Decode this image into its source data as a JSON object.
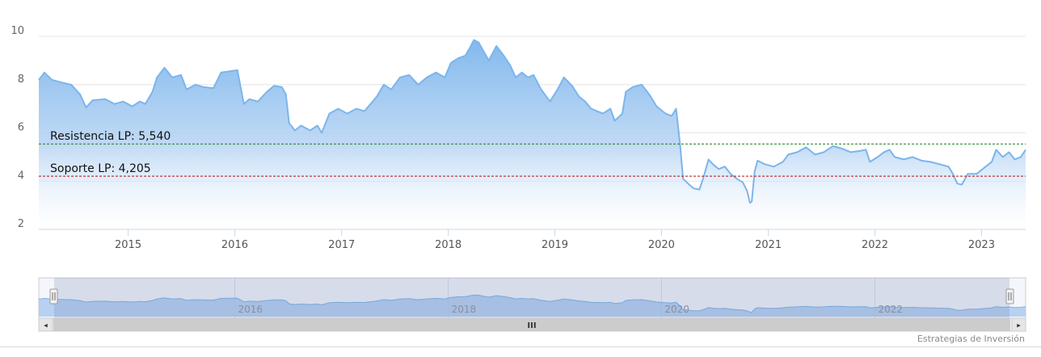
{
  "chart_data": {
    "type": "area",
    "title": "",
    "xlabel": "",
    "ylabel": "",
    "x_range": [
      "2014-03",
      "2023-06"
    ],
    "ylim": [
      2,
      10
    ],
    "y_ticks": [
      2,
      4,
      6,
      8,
      10
    ],
    "x_ticks": [
      "2015",
      "2016",
      "2017",
      "2018",
      "2019",
      "2020",
      "2021",
      "2022",
      "2023"
    ],
    "grid": true,
    "series": [
      {
        "color": "#7cb5ec",
        "points": [
          [
            "2014-03-01",
            8.2
          ],
          [
            "2014-03-20",
            8.5
          ],
          [
            "2014-04-15",
            8.2
          ],
          [
            "2014-05-15",
            8.1
          ],
          [
            "2014-06-20",
            8.0
          ],
          [
            "2014-07-20",
            7.6
          ],
          [
            "2014-08-10",
            7.05
          ],
          [
            "2014-09-01",
            7.35
          ],
          [
            "2014-10-15",
            7.4
          ],
          [
            "2014-11-15",
            7.2
          ],
          [
            "2014-12-15",
            7.3
          ],
          [
            "2015-01-15",
            7.1
          ],
          [
            "2015-02-10",
            7.3
          ],
          [
            "2015-03-01",
            7.2
          ],
          [
            "2015-03-25",
            7.7
          ],
          [
            "2015-04-10",
            8.3
          ],
          [
            "2015-05-05",
            8.7
          ],
          [
            "2015-06-01",
            8.3
          ],
          [
            "2015-07-01",
            8.4
          ],
          [
            "2015-07-20",
            7.8
          ],
          [
            "2015-08-20",
            8.0
          ],
          [
            "2015-09-15",
            7.9
          ],
          [
            "2015-10-20",
            7.85
          ],
          [
            "2015-11-15",
            8.5
          ],
          [
            "2015-12-15",
            8.55
          ],
          [
            "2016-01-10",
            8.6
          ],
          [
            "2016-02-01",
            7.2
          ],
          [
            "2016-02-20",
            7.4
          ],
          [
            "2016-03-20",
            7.3
          ],
          [
            "2016-04-20",
            7.7
          ],
          [
            "2016-05-15",
            7.95
          ],
          [
            "2016-06-10",
            7.9
          ],
          [
            "2016-06-24",
            7.6
          ],
          [
            "2016-07-05",
            6.4
          ],
          [
            "2016-07-25",
            6.1
          ],
          [
            "2016-08-15",
            6.3
          ],
          [
            "2016-09-15",
            6.1
          ],
          [
            "2016-10-10",
            6.3
          ],
          [
            "2016-10-25",
            6.0
          ],
          [
            "2016-11-20",
            6.8
          ],
          [
            "2016-12-20",
            7.0
          ],
          [
            "2017-01-20",
            6.8
          ],
          [
            "2017-02-20",
            7.0
          ],
          [
            "2017-03-20",
            6.9
          ],
          [
            "2017-04-10",
            7.2
          ],
          [
            "2017-05-01",
            7.5
          ],
          [
            "2017-05-25",
            8.0
          ],
          [
            "2017-06-20",
            7.8
          ],
          [
            "2017-07-20",
            8.3
          ],
          [
            "2017-08-20",
            8.4
          ],
          [
            "2017-09-20",
            8.0
          ],
          [
            "2017-10-20",
            8.3
          ],
          [
            "2017-11-20",
            8.5
          ],
          [
            "2017-12-20",
            8.3
          ],
          [
            "2018-01-10",
            8.9
          ],
          [
            "2018-02-05",
            9.1
          ],
          [
            "2018-02-28",
            9.2
          ],
          [
            "2018-03-15",
            9.5
          ],
          [
            "2018-03-30",
            9.85
          ],
          [
            "2018-04-15",
            9.75
          ],
          [
            "2018-05-01",
            9.4
          ],
          [
            "2018-05-20",
            9.0
          ],
          [
            "2018-06-15",
            9.6
          ],
          [
            "2018-07-10",
            9.2
          ],
          [
            "2018-08-01",
            8.8
          ],
          [
            "2018-08-20",
            8.3
          ],
          [
            "2018-09-10",
            8.5
          ],
          [
            "2018-10-01",
            8.3
          ],
          [
            "2018-10-20",
            8.4
          ],
          [
            "2018-11-15",
            7.8
          ],
          [
            "2018-12-15",
            7.3
          ],
          [
            "2019-01-10",
            7.8
          ],
          [
            "2019-02-01",
            8.3
          ],
          [
            "2019-03-01",
            7.95
          ],
          [
            "2019-03-25",
            7.5
          ],
          [
            "2019-04-15",
            7.3
          ],
          [
            "2019-05-05",
            7.0
          ],
          [
            "2019-05-25",
            6.9
          ],
          [
            "2019-06-15",
            6.8
          ],
          [
            "2019-07-10",
            7.0
          ],
          [
            "2019-07-25",
            6.5
          ],
          [
            "2019-08-20",
            6.8
          ],
          [
            "2019-09-01",
            7.7
          ],
          [
            "2019-09-25",
            7.9
          ],
          [
            "2019-10-25",
            8.0
          ],
          [
            "2019-11-20",
            7.6
          ],
          [
            "2019-12-15",
            7.1
          ],
          [
            "2020-01-15",
            6.8
          ],
          [
            "2020-02-05",
            6.7
          ],
          [
            "2020-02-20",
            7.0
          ],
          [
            "2020-03-05",
            5.5
          ],
          [
            "2020-03-15",
            4.1
          ],
          [
            "2020-04-01",
            3.9
          ],
          [
            "2020-04-20",
            3.7
          ],
          [
            "2020-05-10",
            3.65
          ],
          [
            "2020-05-25",
            4.2
          ],
          [
            "2020-06-10",
            4.9
          ],
          [
            "2020-06-25",
            4.7
          ],
          [
            "2020-07-15",
            4.5
          ],
          [
            "2020-08-05",
            4.6
          ],
          [
            "2020-08-25",
            4.3
          ],
          [
            "2020-09-15",
            4.1
          ],
          [
            "2020-10-05",
            3.95
          ],
          [
            "2020-10-20",
            3.6
          ],
          [
            "2020-10-30",
            3.1
          ],
          [
            "2020-11-05",
            3.15
          ],
          [
            "2020-11-15",
            4.4
          ],
          [
            "2020-11-25",
            4.85
          ],
          [
            "2020-12-20",
            4.7
          ],
          [
            "2021-01-20",
            4.6
          ],
          [
            "2021-02-20",
            4.8
          ],
          [
            "2021-03-10",
            5.1
          ],
          [
            "2021-04-10",
            5.2
          ],
          [
            "2021-05-10",
            5.4
          ],
          [
            "2021-06-10",
            5.1
          ],
          [
            "2021-07-10",
            5.2
          ],
          [
            "2021-08-10",
            5.45
          ],
          [
            "2021-09-10",
            5.35
          ],
          [
            "2021-10-10",
            5.2
          ],
          [
            "2021-11-10",
            5.25
          ],
          [
            "2021-12-01",
            5.3
          ],
          [
            "2021-12-15",
            4.8
          ],
          [
            "2022-01-10",
            5.0
          ],
          [
            "2022-02-01",
            5.2
          ],
          [
            "2022-02-20",
            5.3
          ],
          [
            "2022-03-10",
            5.0
          ],
          [
            "2022-04-10",
            4.9
          ],
          [
            "2022-05-10",
            5.0
          ],
          [
            "2022-06-10",
            4.85
          ],
          [
            "2022-07-10",
            4.8
          ],
          [
            "2022-08-10",
            4.7
          ],
          [
            "2022-09-10",
            4.6
          ],
          [
            "2022-09-25",
            4.3
          ],
          [
            "2022-10-10",
            3.9
          ],
          [
            "2022-10-25",
            3.85
          ],
          [
            "2022-11-15",
            4.3
          ],
          [
            "2022-12-15",
            4.3
          ],
          [
            "2023-01-15",
            4.6
          ],
          [
            "2023-02-05",
            4.8
          ],
          [
            "2023-02-20",
            5.3
          ],
          [
            "2023-03-15",
            5.0
          ],
          [
            "2023-04-05",
            5.2
          ],
          [
            "2023-04-25",
            4.9
          ],
          [
            "2023-05-15",
            5.0
          ],
          [
            "2023-06-01",
            5.3
          ]
        ]
      }
    ],
    "annotations": [
      {
        "label": "Resistencia LP: 5,540",
        "value": 5.54,
        "color": "#1a7a1a"
      },
      {
        "label": "Soporte LP: 4,205",
        "value": 4.205,
        "color": "#aa1111"
      }
    ],
    "navigator": {
      "labels": [
        "2016",
        "2018",
        "2020",
        "2022"
      ],
      "scrollbar_grip": "III",
      "left_arrow": "◂",
      "right_arrow": "▸"
    }
  },
  "credits": "Estrategias de Inversión"
}
